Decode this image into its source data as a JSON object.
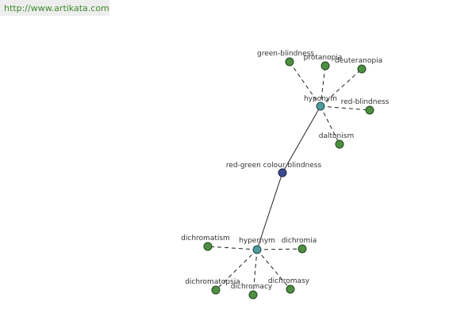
{
  "header": {
    "url": "http://www.artikata.com"
  },
  "graph": {
    "center": {
      "label": "red-green colour blindness"
    },
    "hyponym": {
      "label": "hyponym",
      "children": [
        "green-blindness",
        "protanopia",
        "deuteranopia",
        "red-blindness",
        "daltonism"
      ]
    },
    "hypernym": {
      "label": "hypernym",
      "children": [
        "dichromatism",
        "dichromia",
        "dichromatopsia",
        "dichromacy",
        "dichromasy"
      ]
    }
  }
}
